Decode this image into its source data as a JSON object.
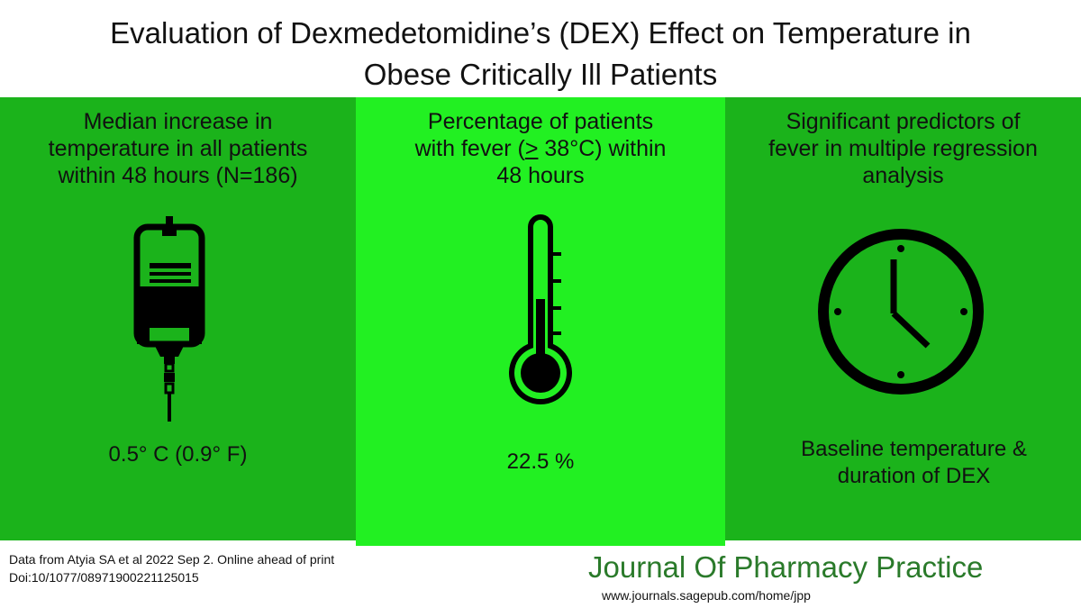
{
  "title": {
    "line1": "Evaluation of Dexmedetomidine’s (DEX) Effect on Temperature in",
    "line2": "Obese Critically Ill Patients"
  },
  "panels": [
    {
      "heading": [
        "Median increase in",
        "temperature in all patients",
        "within 48 hours (N=186)"
      ],
      "icon": "iv-bag-icon",
      "value": "0.5° C (0.9° F)",
      "color": "#1bb31b"
    },
    {
      "heading_line1": "Percentage of patients",
      "heading_line2_pre": "with fever (",
      "heading_line2_ul": ">",
      "heading_line2_post": " 38°C) within",
      "heading_line3": "48 hours",
      "icon": "thermometer-icon",
      "value": "22.5 %",
      "color": "#22f022"
    },
    {
      "heading": [
        "Significant predictors  of",
        "fever in multiple regression",
        "analysis"
      ],
      "icon": "clock-icon",
      "value": [
        "Baseline temperature &",
        "duration of DEX"
      ],
      "color": "#1bb31b"
    }
  ],
  "footer": {
    "citation_line1": "Data from Atyia SA et al 2022 Sep 2. Online ahead of print",
    "citation_line2": "Doi:10/1077/08971900221125015",
    "journal": "Journal Of Pharmacy Practice",
    "url": "www.journals.sagepub.com/home/jpp",
    "journal_color": "#2a7a2a"
  }
}
